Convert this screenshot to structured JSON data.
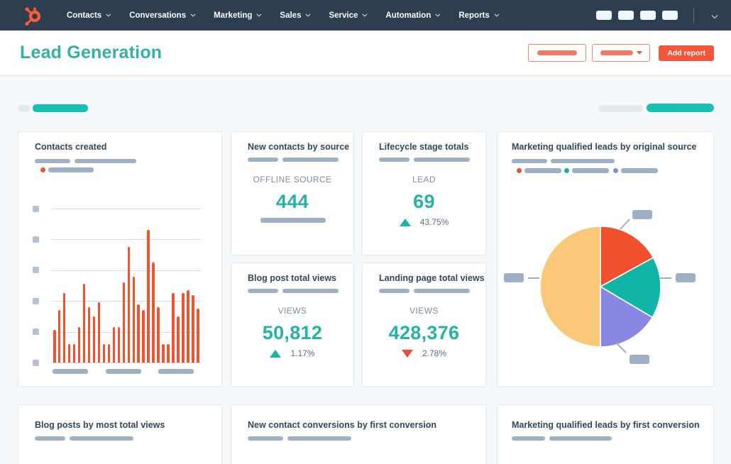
{
  "nav": {
    "items": [
      {
        "label": "Contacts"
      },
      {
        "label": "Conversations"
      },
      {
        "label": "Marketing"
      },
      {
        "label": "Sales"
      },
      {
        "label": "Service"
      },
      {
        "label": "Automation"
      },
      {
        "label": "Reports"
      }
    ],
    "icon_placeholder_count": 4
  },
  "header": {
    "title": "Lead Generation",
    "add_report_label": "Add report"
  },
  "cards": {
    "contacts_created": {
      "title": "Contacts created"
    },
    "new_contacts_by_source": {
      "title": "New contacts by source",
      "metric_label": "OFFLINE SOURCE",
      "value": "444"
    },
    "lifecycle_stage_totals": {
      "title": "Lifecycle stage totals",
      "metric_label": "LEAD",
      "value": "69",
      "delta": "43.75%",
      "delta_direction": "up"
    },
    "mql_by_original_source": {
      "title": "Marketing qualified leads by original source"
    },
    "blog_post_total_views": {
      "title": "Blog post total views",
      "metric_label": "VIEWS",
      "value": "50,812",
      "delta": "1.17%",
      "delta_direction": "up"
    },
    "landing_page_total_views": {
      "title": "Landing page total views",
      "metric_label": "VIEWS",
      "value": "428,376",
      "delta": "2.78%",
      "delta_direction": "down"
    },
    "blog_posts_by_most_total_views": {
      "title": "Blog posts by most total views"
    },
    "new_contact_conversions_by_first_conversion": {
      "title": "New contact conversions by first conversion"
    },
    "mql_by_first_conversion": {
      "title": "Marketing qualified leads by first conversion"
    }
  },
  "chart_data": [
    {
      "type": "bar",
      "title": "Contacts created",
      "values": [
        21,
        34,
        45,
        12,
        12,
        23,
        51,
        36,
        30,
        39,
        12,
        12,
        23,
        23,
        52,
        75,
        56,
        38,
        34,
        86,
        65,
        36,
        12,
        12,
        45,
        30,
        45,
        47,
        44,
        35
      ],
      "ylim": [
        0,
        100
      ],
      "gridline_count": 6,
      "grid": true,
      "bar_color": "#f0532f",
      "xlabel": "placeholder pills (3 groups, unlabeled)",
      "ylabel": "placeholder tick squares (unlabeled)",
      "legend": [
        {
          "name": "placeholder series",
          "color": "#f0532f"
        }
      ],
      "legend_position": "top"
    },
    {
      "type": "pie",
      "title": "Marketing qualified leads by original source",
      "slices": [
        {
          "label": "placeholder slice 1",
          "percent": 17,
          "color": "#f1502f"
        },
        {
          "label": "placeholder slice 2",
          "percent": 16.5,
          "color": "#10b5a7"
        },
        {
          "label": "placeholder slice 3",
          "percent": 16.5,
          "color": "#8a87e2"
        },
        {
          "label": "placeholder slice 4",
          "percent": 50,
          "color": "#fbc87a"
        }
      ],
      "start_angle_deg": 0,
      "legend": [
        {
          "name": "placeholder legend 1",
          "color": "#f1502f"
        },
        {
          "name": "placeholder legend 2",
          "color": "#10b5a7"
        },
        {
          "name": "placeholder legend 3",
          "color": "#8a87e2"
        }
      ],
      "legend_position": "top",
      "callout_labels": "4 placeholder pills (unlabeled)"
    }
  ],
  "colors": {
    "nav_bg": "#2d3e50",
    "brand_orange": "#ff5c35",
    "accent_orange": "#f2573d",
    "bar_orange": "#f0532f",
    "teal_heading": "#33b0a3",
    "teal_value": "#26b2a4",
    "teal_filter_pill": "#16c0b2",
    "pie_orange": "#f1502f",
    "pie_teal": "#10b5a7",
    "pie_purple": "#8a87e2",
    "pie_yellow": "#fbc87a",
    "delta_up": "#16b5a5",
    "delta_down": "#ee4b3d",
    "placeholder_gray": "#9db0c6",
    "placeholder_light": "#e4e9ee",
    "card_title_text": "#33475b",
    "muted_text": "#7d8ea1"
  }
}
